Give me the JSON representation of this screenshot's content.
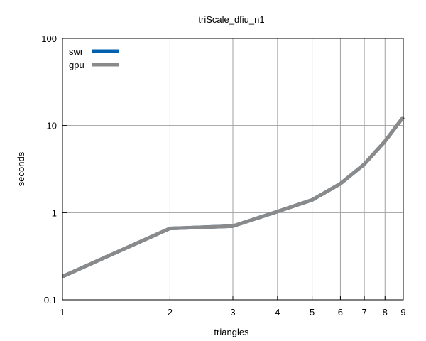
{
  "chart_data": {
    "type": "line",
    "title": "triScale_dfiu_n1",
    "xlabel": "triangles",
    "ylabel": "seconds",
    "x_scale": "log",
    "y_scale": "log",
    "xlim": [
      1,
      9
    ],
    "ylim": [
      0.1,
      100
    ],
    "x_ticks": [
      "1",
      "2",
      "3",
      "4",
      "5",
      "6",
      "7",
      "8",
      "9"
    ],
    "y_ticks": [
      "0.1",
      "1",
      "10",
      "100"
    ],
    "grid": true,
    "legend_position": "top-left",
    "x": [
      1,
      2,
      3,
      4,
      5,
      6,
      7,
      8,
      9
    ],
    "series": [
      {
        "name": "swr",
        "color": "#0060ad",
        "values": [
          0.185,
          0.66,
          0.7,
          1.03,
          1.4,
          2.15,
          3.6,
          6.6,
          12.5
        ]
      },
      {
        "name": "gpu",
        "color": "#8a8a8a",
        "values": [
          0.185,
          0.66,
          0.7,
          1.03,
          1.4,
          2.15,
          3.6,
          6.6,
          12.5
        ]
      }
    ]
  }
}
